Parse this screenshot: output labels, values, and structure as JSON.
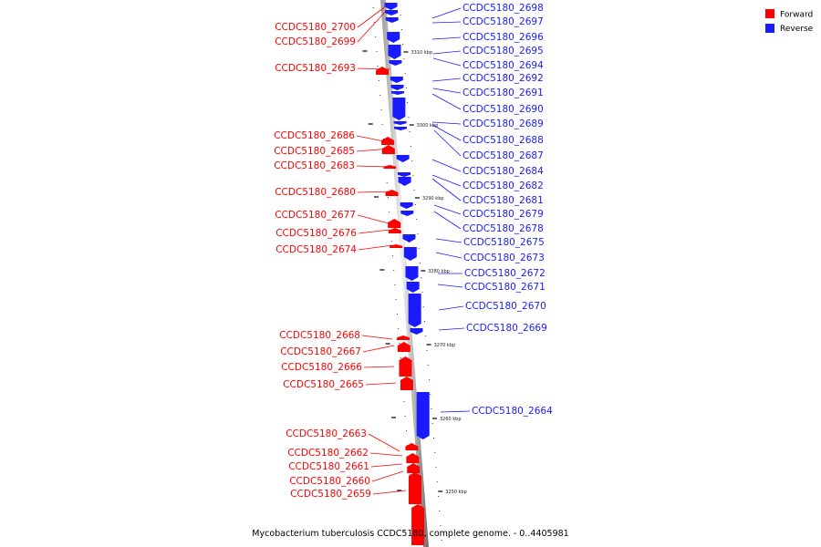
{
  "caption": "Mycobacterium tuberculosis CCDC5180, complete genome. - 0..4405981",
  "legend": {
    "forward_label": "Forward",
    "reverse_label": "Reverse",
    "forward_color": "#ff0000",
    "reverse_color": "#1a1aff"
  },
  "ticks": [
    "3310 kbp",
    "3300 kbp",
    "3290 kbp",
    "3280 kbp",
    "3270 kbp",
    "3260 kbp",
    "3250 kbp"
  ],
  "genes": {
    "reverse": [
      "CCDC5180_2698",
      "CCDC5180_2697",
      "CCDC5180_2696",
      "CCDC5180_2695",
      "CCDC5180_2694",
      "CCDC5180_2692",
      "CCDC5180_2691",
      "CCDC5180_2690",
      "CCDC5180_2689",
      "CCDC5180_2688",
      "CCDC5180_2687",
      "CCDC5180_2684",
      "CCDC5180_2682",
      "CCDC5180_2681",
      "CCDC5180_2679",
      "CCDC5180_2678",
      "CCDC5180_2675",
      "CCDC5180_2673",
      "CCDC5180_2672",
      "CCDC5180_2671",
      "CCDC5180_2670",
      "CCDC5180_2669",
      "CCDC5180_2664"
    ],
    "forward": [
      "CCDC5180_2700",
      "CCDC5180_2699",
      "CCDC5180_2693",
      "CCDC5180_2686",
      "CCDC5180_2685",
      "CCDC5180_2683",
      "CCDC5180_2680",
      "CCDC5180_2677",
      "CCDC5180_2676",
      "CCDC5180_2674",
      "CCDC5180_2668",
      "CCDC5180_2667",
      "CCDC5180_2666",
      "CCDC5180_2665",
      "CCDC5180_2663",
      "CCDC5180_2662",
      "CCDC5180_2661",
      "CCDC5180_2660",
      "CCDC5180_2659"
    ]
  }
}
